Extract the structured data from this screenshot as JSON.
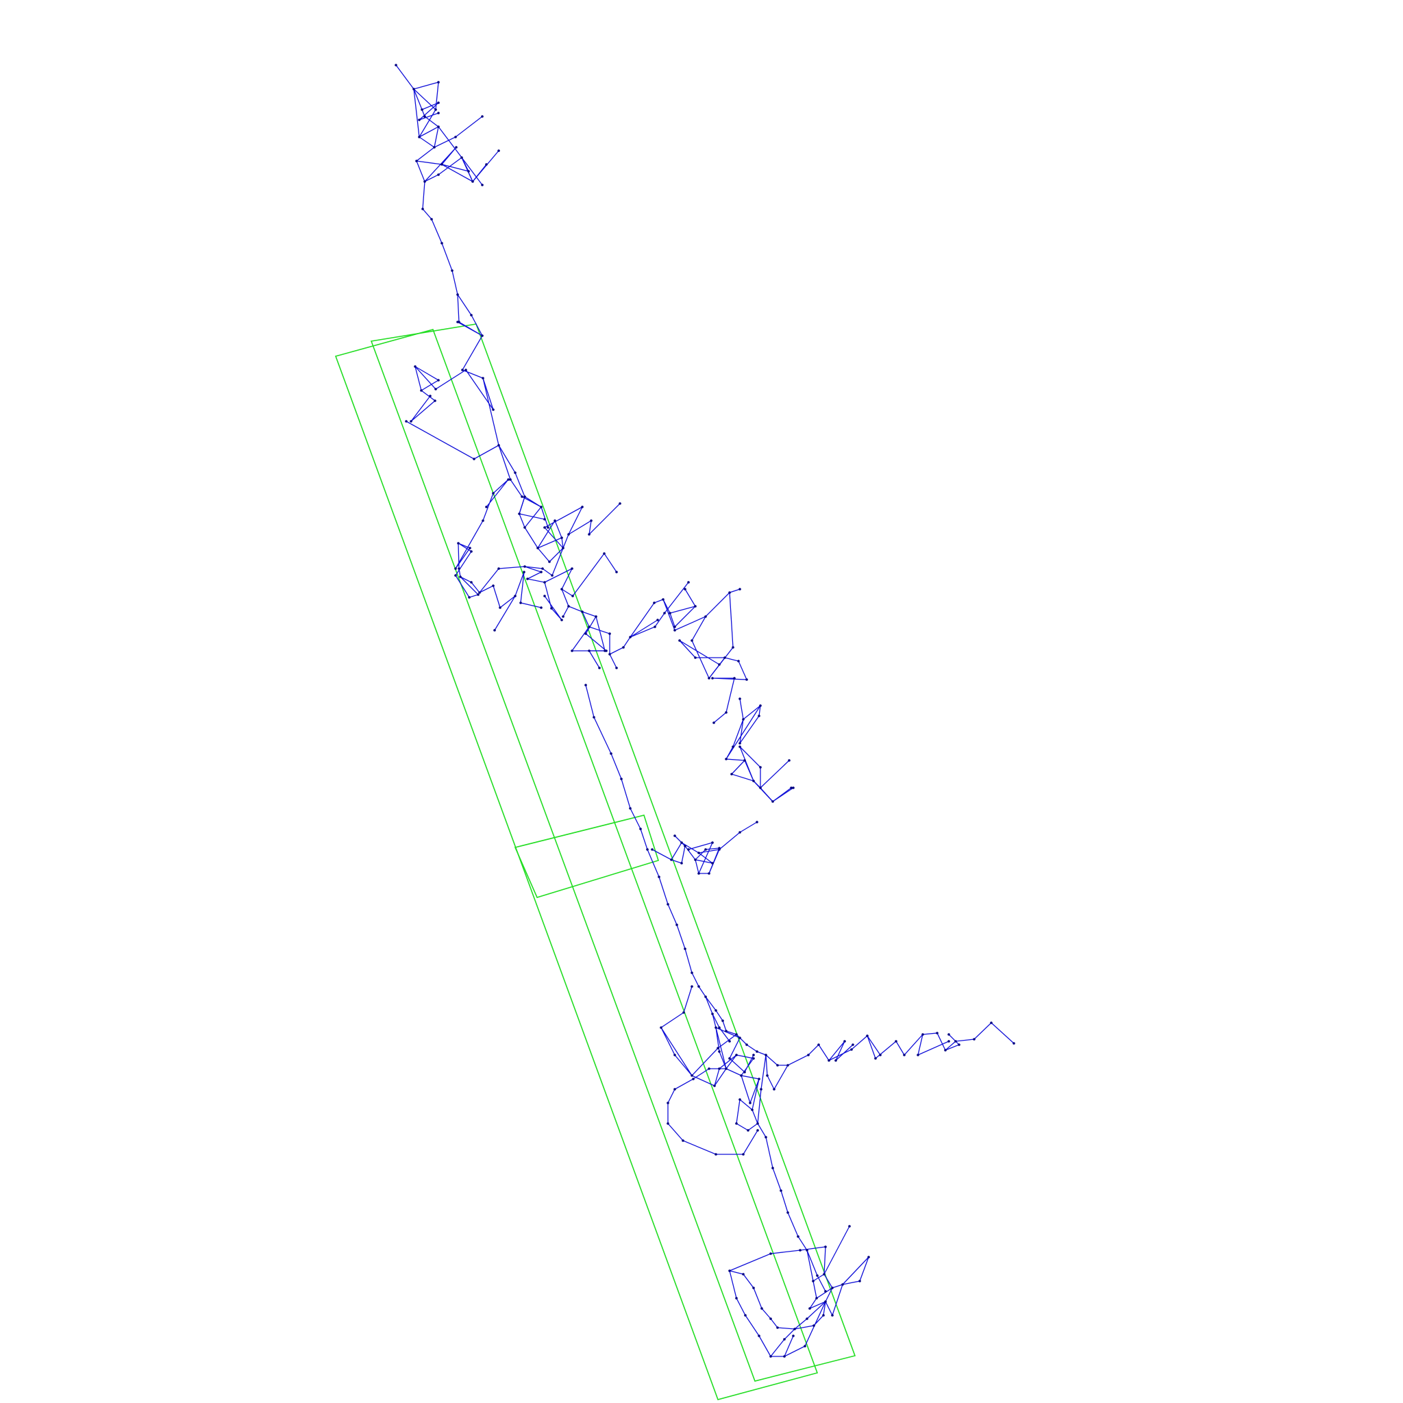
{
  "colors": {
    "background": "#ffffff",
    "network": "#1010d8",
    "node": "#000080",
    "frames": "#22dd22"
  },
  "icons": {
    "node": "node-dot",
    "frame": "rectangle-outline"
  }
}
